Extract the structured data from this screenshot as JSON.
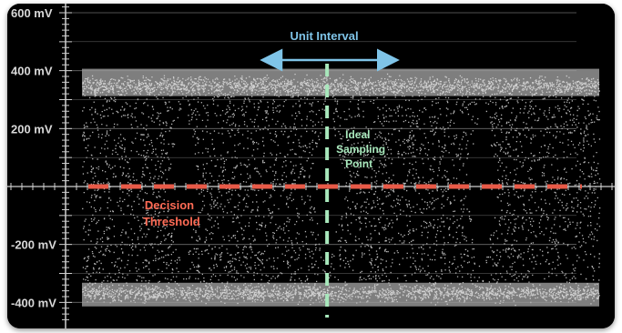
{
  "chart_data": {
    "type": "eye-diagram",
    "y_unit": "mV",
    "ylim": [
      -470,
      620
    ],
    "y_ticks": [
      {
        "value": 600,
        "label": "600 mV"
      },
      {
        "value": 400,
        "label": "400 mV"
      },
      {
        "value": 200,
        "label": "200 mV"
      },
      {
        "value": -200,
        "label": "-200 mV"
      },
      {
        "value": -400,
        "label": "-400 mV"
      }
    ],
    "levels_mV": {
      "high": 350,
      "low": -370
    },
    "decision_threshold_mV": 0,
    "eye_crossings": [
      0.22,
      0.49,
      0.78
    ],
    "annotations": {
      "unit_interval": "Unit Interval",
      "sampling_point": [
        "Ideal",
        "Sampling",
        "Point"
      ],
      "decision_threshold": [
        "Decision",
        "Threshold"
      ]
    },
    "grid": true
  },
  "colors": {
    "background": "#000000",
    "noise": "#c8c8c8",
    "unit_interval": "#7fc4e8",
    "sampling_point": "#a8e8bc",
    "decision_threshold": "#e85a48"
  }
}
